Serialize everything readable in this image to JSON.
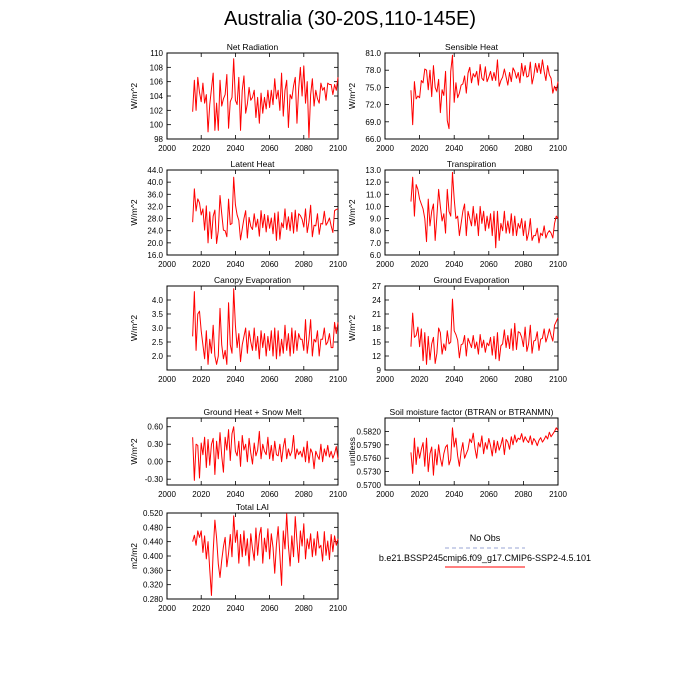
{
  "figure": {
    "title": "Australia (30-20S,110-145E)",
    "legend": [
      {
        "label": "No Obs",
        "color": "#9aa6d6",
        "dash": true
      },
      {
        "label": "b.e21.BSSP245cmip6.f09_g17.CMIP6-SSP2-4.5.101",
        "color": "#ff0000",
        "dash": false
      }
    ]
  },
  "chart_data": [
    {
      "type": "line",
      "title": "Net Radiation",
      "ylabel": "W/m^2",
      "xlim": [
        2000,
        2100
      ],
      "ylim": [
        98,
        110
      ],
      "yticks": [
        "98",
        "100",
        "102",
        "104",
        "106",
        "108",
        "110"
      ],
      "xticks": [
        "2000",
        "2020",
        "2040",
        "2060",
        "2080",
        "2100"
      ],
      "x_start": 2015,
      "x_end": 2100,
      "series": [
        {
          "values": [
            101.8,
            106.2,
            102.0,
            106.6,
            104.5,
            103.2,
            105.8,
            103.0,
            104.2,
            99.0,
            102.8,
            105.0,
            107.2,
            99.2,
            103.0,
            99.2,
            106.2,
            102.6,
            103.6,
            104.2,
            107.0,
            99.5,
            103.2,
            103.8,
            109.2,
            103.4,
            102.8,
            106.6,
            99.2,
            104.8,
            106.8,
            101.6,
            102.9,
            105.2,
            103.4,
            103.8,
            104.8,
            101.0,
            103.8,
            100.2,
            104.4,
            101.6,
            103.8,
            102.2,
            104.8,
            102.4,
            104.8,
            102.8,
            106.4,
            103.6,
            104.8,
            102.0,
            107.2,
            101.2,
            104.8,
            106.2,
            99.6,
            104.2,
            103.6,
            105.4,
            106.6,
            100.2,
            105.0,
            108.0,
            104.0,
            108.2,
            103.0,
            106.0,
            98.2,
            104.2,
            106.4,
            102.6,
            104.8,
            103.6,
            103.0,
            105.8,
            104.8,
            105.2,
            103.4,
            105.8,
            105.6,
            105.6,
            104.2,
            105.6,
            104.8,
            106.6
          ]
        }
      ]
    },
    {
      "type": "line",
      "title": "Sensible Heat",
      "ylabel": "W/m^2",
      "xlim": [
        2000,
        2100
      ],
      "ylim": [
        66,
        81
      ],
      "yticks": [
        "66.0",
        "69.0",
        "72.0",
        "75.0",
        "78.0",
        "81.0"
      ],
      "xticks": [
        "2000",
        "2020",
        "2040",
        "2060",
        "2080",
        "2100"
      ],
      "x_start": 2015,
      "x_end": 2100,
      "series": [
        {
          "values": [
            74.5,
            68.5,
            76.0,
            73.0,
            73.5,
            73.2,
            76.2,
            75.8,
            78.2,
            78.0,
            74.6,
            78.0,
            73.4,
            78.8,
            75.0,
            74.2,
            76.4,
            70.6,
            74.6,
            73.6,
            77.8,
            69.2,
            67.8,
            77.8,
            80.6,
            72.4,
            75.8,
            73.2,
            74.0,
            75.4,
            75.6,
            77.0,
            74.0,
            77.5,
            78.5,
            75.8,
            77.4,
            76.8,
            77.8,
            75.4,
            79.0,
            76.6,
            76.2,
            78.6,
            76.0,
            76.8,
            77.8,
            76.2,
            77.6,
            76.2,
            79.8,
            75.2,
            76.2,
            76.8,
            78.2,
            76.8,
            75.4,
            77.6,
            76.0,
            78.4,
            77.8,
            76.6,
            77.6,
            75.8,
            79.2,
            77.0,
            78.8,
            76.8,
            77.0,
            79.4,
            75.6,
            77.0,
            79.2,
            77.6,
            79.2,
            77.4,
            79.8,
            77.8,
            76.2,
            78.8,
            77.2,
            76.6,
            74.0,
            75.2,
            74.4,
            76.0
          ]
        }
      ]
    },
    {
      "type": "line",
      "title": "Latent Heat",
      "ylabel": "W/m^2",
      "xlim": [
        2000,
        2100
      ],
      "ylim": [
        16,
        44
      ],
      "yticks": [
        "16.0",
        "20.0",
        "24.0",
        "28.0",
        "32.0",
        "36.0",
        "40.0",
        "44.0"
      ],
      "xticks": [
        "2000",
        "2020",
        "2040",
        "2060",
        "2080",
        "2100"
      ],
      "x_start": 2015,
      "x_end": 2100,
      "series": [
        {
          "values": [
            26.8,
            37.8,
            30.5,
            34.5,
            33.2,
            29.2,
            31.2,
            24.2,
            32.2,
            20.0,
            30.2,
            21.4,
            28.8,
            30.8,
            19.8,
            24.0,
            35.6,
            29.6,
            24.2,
            24.0,
            22.0,
            34.4,
            26.0,
            26.4,
            41.6,
            32.6,
            29.2,
            27.4,
            21.0,
            24.6,
            28.0,
            30.6,
            21.6,
            28.4,
            25.4,
            24.4,
            29.6,
            25.2,
            27.8,
            22.2,
            30.6,
            25.0,
            29.4,
            23.6,
            29.0,
            24.8,
            28.2,
            23.0,
            29.8,
            20.8,
            30.2,
            21.2,
            26.6,
            25.0,
            31.2,
            24.4,
            28.6,
            24.0,
            30.0,
            23.2,
            30.8,
            23.8,
            29.6,
            29.0,
            27.8,
            25.2,
            31.2,
            23.4,
            26.8,
            32.4,
            22.0,
            25.8,
            25.6,
            29.6,
            22.8,
            26.4,
            26.2,
            30.4,
            25.8,
            26.8,
            28.2,
            25.6,
            23.4,
            30.6,
            31.0,
            31.2
          ]
        }
      ]
    },
    {
      "type": "line",
      "title": "Transpiration",
      "ylabel": "W/m^2",
      "xlim": [
        2000,
        2100
      ],
      "ylim": [
        6,
        13
      ],
      "yticks": [
        "6.0",
        "7.0",
        "8.0",
        "9.0",
        "10.0",
        "11.0",
        "12.0",
        "13.0"
      ],
      "xticks": [
        "2000",
        "2020",
        "2040",
        "2060",
        "2080",
        "2100"
      ],
      "x_start": 2015,
      "x_end": 2100,
      "series": [
        {
          "values": [
            10.4,
            12.4,
            9.2,
            11.8,
            11.4,
            10.6,
            10.2,
            9.8,
            9.0,
            7.1,
            10.6,
            8.4,
            9.6,
            10.2,
            7.2,
            9.2,
            11.4,
            10.0,
            8.8,
            9.4,
            7.8,
            11.4,
            9.6,
            9.2,
            12.8,
            10.6,
            9.0,
            9.2,
            7.6,
            8.6,
            9.6,
            10.2,
            7.6,
            9.6,
            9.0,
            8.4,
            10.0,
            8.4,
            9.4,
            7.6,
            10.0,
            8.6,
            9.6,
            8.0,
            9.2,
            8.2,
            9.4,
            7.6,
            9.6,
            6.6,
            9.6,
            7.2,
            8.6,
            8.0,
            9.6,
            7.8,
            8.8,
            7.8,
            9.4,
            7.6,
            9.2,
            7.6,
            8.6,
            8.2,
            9.0,
            7.6,
            8.8,
            7.2,
            7.8,
            9.0,
            7.2,
            7.6,
            7.6,
            8.2,
            7.0,
            7.8,
            7.6,
            8.4,
            7.4,
            7.8,
            8.0,
            7.8,
            7.4,
            8.6,
            9.2,
            9.0
          ]
        }
      ]
    },
    {
      "type": "line",
      "title": "Canopy Evaporation",
      "ylabel": "W/m^2",
      "xlim": [
        2000,
        2100
      ],
      "ylim": [
        1.5,
        4.5
      ],
      "yticks": [
        "2.0",
        "2.5",
        "3.0",
        "3.5",
        "4.0"
      ],
      "xticks": [
        "2000",
        "2020",
        "2040",
        "2060",
        "2080",
        "2100"
      ],
      "x_start": 2015,
      "x_end": 2100,
      "series": [
        {
          "values": [
            2.7,
            4.3,
            2.2,
            3.5,
            3.6,
            2.9,
            2.4,
            1.9,
            2.9,
            1.7,
            2.6,
            2.1,
            3.1,
            2.0,
            1.7,
            2.0,
            3.7,
            2.4,
            1.9,
            2.2,
            1.7,
            3.9,
            2.4,
            2.1,
            4.4,
            3.1,
            2.3,
            2.8,
            1.8,
            2.4,
            2.7,
            3.0,
            2.1,
            2.9,
            2.5,
            2.2,
            3.0,
            2.2,
            2.7,
            1.9,
            2.9,
            2.3,
            2.8,
            2.0,
            2.7,
            2.2,
            2.9,
            2.0,
            3.0,
            1.9,
            2.9,
            2.0,
            2.6,
            2.1,
            3.1,
            2.2,
            2.8,
            2.0,
            3.0,
            2.1,
            2.9,
            2.2,
            2.8,
            2.6,
            2.6,
            2.2,
            3.3,
            2.1,
            2.6,
            3.3,
            2.0,
            2.6,
            2.5,
            2.9,
            2.0,
            2.6,
            2.6,
            3.0,
            2.4,
            2.5,
            2.8,
            2.3,
            2.3,
            3.2,
            2.8,
            3.2
          ]
        }
      ]
    },
    {
      "type": "line",
      "title": "Ground Evaporation",
      "ylabel": "W/m^2",
      "xlim": [
        2000,
        2100
      ],
      "ylim": [
        9,
        27
      ],
      "yticks": [
        "9",
        "12",
        "15",
        "18",
        "21",
        "24",
        "27"
      ],
      "xticks": [
        "2000",
        "2020",
        "2040",
        "2060",
        "2080",
        "2100"
      ],
      "x_start": 2015,
      "x_end": 2100,
      "series": [
        {
          "values": [
            14.0,
            21.2,
            16.0,
            16.4,
            18.2,
            14.0,
            17.8,
            11.0,
            17.0,
            10.2,
            16.2,
            11.2,
            14.6,
            16.0,
            10.4,
            12.6,
            18.0,
            17.0,
            12.4,
            14.6,
            13.2,
            17.4,
            14.6,
            15.0,
            24.2,
            17.4,
            16.6,
            15.4,
            11.6,
            14.4,
            14.6,
            16.4,
            12.0,
            15.8,
            14.8,
            13.8,
            16.4,
            13.6,
            15.0,
            12.4,
            16.6,
            13.8,
            15.4,
            12.8,
            14.8,
            14.2,
            16.0,
            12.2,
            16.2,
            11.4,
            17.0,
            11.0,
            14.2,
            14.6,
            17.6,
            13.8,
            16.4,
            13.6,
            17.8,
            13.2,
            19.0,
            13.4,
            17.2,
            17.0,
            16.0,
            14.0,
            18.2,
            13.0,
            14.6,
            18.6,
            12.6,
            15.2,
            15.4,
            17.2,
            13.2,
            15.6,
            15.8,
            17.8,
            15.0,
            16.2,
            17.8,
            16.4,
            15.2,
            18.6,
            19.4,
            20.2
          ]
        }
      ]
    },
    {
      "type": "line",
      "title": "Ground Heat + Snow Melt",
      "ylabel": "W/m^2",
      "xlim": [
        2000,
        2100
      ],
      "ylim": [
        -0.4,
        0.75
      ],
      "yticks": [
        "-0.30",
        "0.00",
        "0.30",
        "0.60"
      ],
      "xticks": [
        "2000",
        "2020",
        "2040",
        "2060",
        "2080",
        "2100"
      ],
      "x_start": 2015,
      "x_end": 2100,
      "series": [
        {
          "values": [
            0.42,
            -0.32,
            0.3,
            0.28,
            -0.28,
            0.32,
            0.12,
            0.42,
            -0.1,
            0.38,
            -0.06,
            0.3,
            0.4,
            -0.22,
            0.35,
            0.05,
            0.5,
            0.1,
            -0.18,
            0.42,
            0.2,
            0.55,
            0.02,
            0.48,
            0.6,
            0.18,
            0.1,
            0.35,
            -0.08,
            0.45,
            0.2,
            0.3,
            0.0,
            0.4,
            0.15,
            -0.04,
            0.32,
            0.1,
            0.2,
            0.52,
            0.05,
            0.3,
            0.18,
            0.12,
            0.42,
            0.05,
            0.28,
            0.02,
            0.35,
            0.12,
            0.1,
            0.3,
            0.0,
            0.25,
            0.4,
            0.05,
            0.22,
            0.1,
            0.18,
            0.45,
            0.05,
            0.22,
            0.12,
            0.18,
            0.08,
            0.25,
            0.0,
            0.35,
            -0.02,
            0.22,
            0.15,
            -0.12,
            0.18,
            0.1,
            0.04,
            0.3,
            0.0,
            0.22,
            0.1,
            0.28,
            0.08,
            0.18,
            0.06,
            0.14,
            0.26,
            0.04
          ]
        }
      ]
    },
    {
      "type": "line",
      "title": "Soil moisture factor (BTRAN or BTRANMN)",
      "ylabel": "unitless",
      "xlim": [
        2000,
        2100
      ],
      "ylim": [
        0.57,
        0.585
      ],
      "yticks": [
        "0.5700",
        "0.5730",
        "0.5760",
        "0.5790",
        "0.5820"
      ],
      "xticks": [
        "2000",
        "2020",
        "2040",
        "2060",
        "2080",
        "2100"
      ],
      "x_start": 2015,
      "x_end": 2100,
      "series": [
        {
          "values": [
            0.5773,
            0.5726,
            0.5805,
            0.5746,
            0.5785,
            0.576,
            0.578,
            0.5795,
            0.5742,
            0.5805,
            0.573,
            0.577,
            0.5785,
            0.5722,
            0.578,
            0.5745,
            0.579,
            0.576,
            0.5742,
            0.577,
            0.5785,
            0.579,
            0.5745,
            0.5758,
            0.5828,
            0.5785,
            0.5805,
            0.5765,
            0.5742,
            0.5775,
            0.5795,
            0.576,
            0.577,
            0.578,
            0.5803,
            0.5795,
            0.5816,
            0.5782,
            0.576,
            0.5795,
            0.5785,
            0.581,
            0.577,
            0.5795,
            0.578,
            0.5804,
            0.5788,
            0.5765,
            0.58,
            0.5772,
            0.5798,
            0.5778,
            0.579,
            0.5806,
            0.5768,
            0.5802,
            0.5796,
            0.578,
            0.5808,
            0.579,
            0.5812,
            0.5796,
            0.5805,
            0.5802,
            0.5815,
            0.5796,
            0.5808,
            0.58,
            0.5795,
            0.581,
            0.579,
            0.5804,
            0.5798,
            0.5788,
            0.58,
            0.5806,
            0.5796,
            0.5802,
            0.581,
            0.5803,
            0.5818,
            0.5808,
            0.5814,
            0.582,
            0.5828,
            0.5822
          ]
        }
      ]
    },
    {
      "type": "line",
      "title": "Total LAI",
      "ylabel": "m2/m2",
      "xlim": [
        2000,
        2100
      ],
      "ylim": [
        0.28,
        0.52
      ],
      "yticks": [
        "0.280",
        "0.320",
        "0.360",
        "0.400",
        "0.440",
        "0.480",
        "0.520"
      ],
      "xticks": [
        "2000",
        "2020",
        "2040",
        "2060",
        "2080",
        "2100"
      ],
      "x_start": 2015,
      "x_end": 2100,
      "series": [
        {
          "values": [
            0.44,
            0.458,
            0.43,
            0.47,
            0.452,
            0.47,
            0.41,
            0.456,
            0.392,
            0.44,
            0.362,
            0.29,
            0.412,
            0.5,
            0.45,
            0.378,
            0.34,
            0.388,
            0.426,
            0.452,
            0.37,
            0.408,
            0.46,
            0.398,
            0.512,
            0.438,
            0.472,
            0.38,
            0.46,
            0.398,
            0.47,
            0.402,
            0.448,
            0.372,
            0.462,
            0.42,
            0.388,
            0.478,
            0.402,
            0.458,
            0.48,
            0.38,
            0.45,
            0.412,
            0.476,
            0.392,
            0.462,
            0.424,
            0.352,
            0.432,
            0.482,
            0.402,
            0.318,
            0.47,
            0.42,
            0.518,
            0.428,
            0.372,
            0.456,
            0.398,
            0.51,
            0.44,
            0.382,
            0.47,
            0.428,
            0.49,
            0.392,
            0.448,
            0.42,
            0.462,
            0.398,
            0.448,
            0.402,
            0.468,
            0.422,
            0.43,
            0.386,
            0.468,
            0.402,
            0.442,
            0.39,
            0.46,
            0.412,
            0.456,
            0.43,
            0.448
          ]
        }
      ]
    }
  ]
}
